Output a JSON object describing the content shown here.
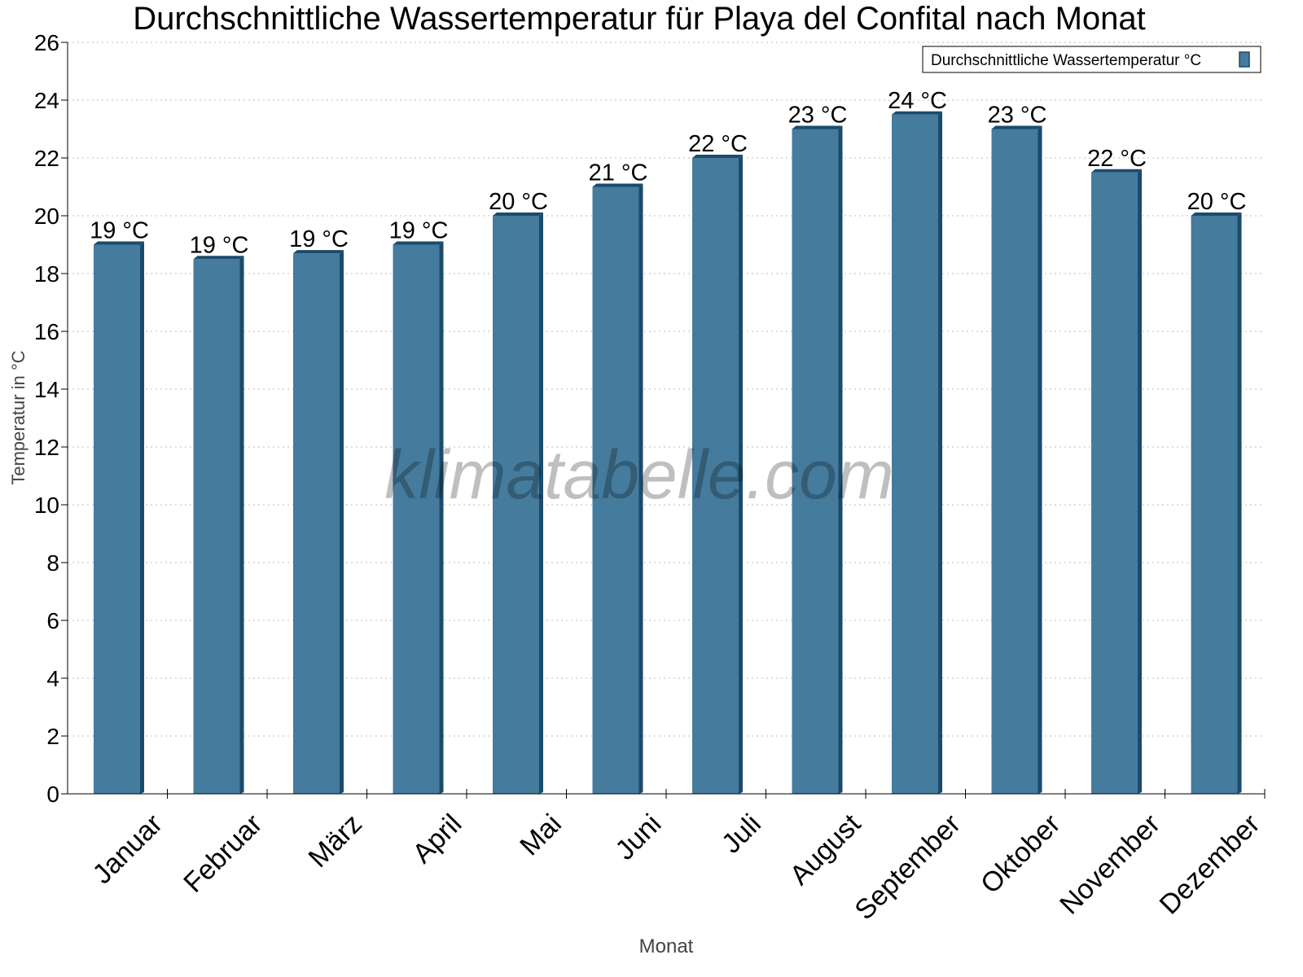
{
  "chart_data": {
    "type": "bar",
    "title": "Durchschnittliche Wassertemperatur für Playa del Confital nach Monat",
    "xlabel": "Monat",
    "ylabel": "Temperatur in °C",
    "ylim": [
      0,
      26
    ],
    "yticks": [
      0,
      2,
      4,
      6,
      8,
      10,
      12,
      14,
      16,
      18,
      20,
      22,
      24,
      26
    ],
    "grid": true,
    "legend_position": "top-right",
    "categories": [
      "Januar",
      "Februar",
      "März",
      "April",
      "Mai",
      "Juni",
      "Juli",
      "August",
      "September",
      "Oktober",
      "November",
      "Dezember"
    ],
    "series": [
      {
        "name": "Durchschnittliche Wassertemperatur °C",
        "values": [
          19,
          18.5,
          18.7,
          19,
          20,
          21,
          22,
          23,
          23.5,
          23,
          21.5,
          20
        ],
        "labels": [
          "19 °C",
          "19 °C",
          "19 °C",
          "19 °C",
          "20 °C",
          "21 °C",
          "22 °C",
          "23 °C",
          "24 °C",
          "23 °C",
          "22 °C",
          "20 °C"
        ],
        "color": "#457b9d",
        "side_color": "#1b4b6b"
      }
    ],
    "watermark": "klimatabelle.com"
  }
}
